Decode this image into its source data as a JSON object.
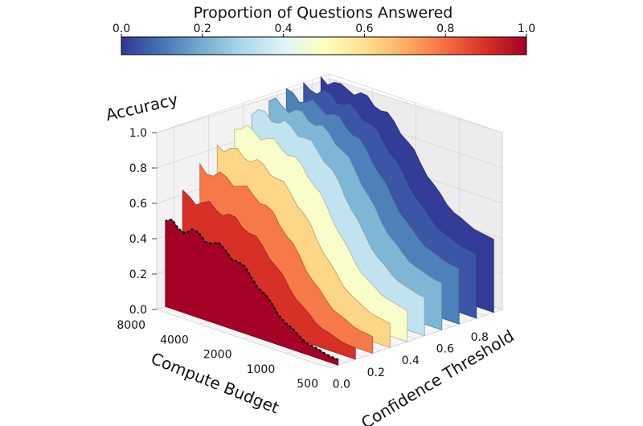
{
  "chart_data": {
    "type": "surface3d",
    "colorbar": {
      "title": "Proportion of Questions Answered",
      "ticks": [
        "0.0",
        "0.2",
        "0.4",
        "0.6",
        "0.8",
        "1.0"
      ],
      "colormap": "RdYlBu_r",
      "range": [
        0,
        1
      ],
      "colors": [
        "#313695",
        "#4575b4",
        "#74add1",
        "#abd9e9",
        "#e0f3f8",
        "#ffffbf",
        "#fee090",
        "#fdae61",
        "#f46d43",
        "#d73027",
        "#a50026"
      ]
    },
    "zlabel": "Accuracy",
    "zticks": [
      "0.0",
      "0.2",
      "0.4",
      "0.6",
      "0.8",
      "1.0"
    ],
    "zlim": [
      0,
      1
    ],
    "xlabel": "Compute Budget",
    "xticks": [
      "8000",
      "4000",
      "2000",
      "1000",
      "500"
    ],
    "xscale": "log",
    "ylabel": "Confidence Threshold",
    "yticks": [
      "0.0",
      "0.2",
      "0.4",
      "0.6",
      "0.8"
    ],
    "ylim": [
      0,
      1
    ],
    "grid": true,
    "ridges": [
      {
        "threshold": 0.0,
        "accuracy_low_budget": 0.02,
        "accuracy_high_budget": 0.48,
        "proportion": 1.0
      },
      {
        "threshold": 0.1,
        "accuracy_low_budget": 0.05,
        "accuracy_high_budget": 0.6,
        "proportion": 0.9
      },
      {
        "threshold": 0.2,
        "accuracy_low_budget": 0.08,
        "accuracy_high_budget": 0.72,
        "proportion": 0.78
      },
      {
        "threshold": 0.3,
        "accuracy_low_budget": 0.12,
        "accuracy_high_budget": 0.82,
        "proportion": 0.62
      },
      {
        "threshold": 0.4,
        "accuracy_low_budget": 0.16,
        "accuracy_high_budget": 0.9,
        "proportion": 0.48
      },
      {
        "threshold": 0.5,
        "accuracy_low_budget": 0.2,
        "accuracy_high_budget": 0.95,
        "proportion": 0.34
      },
      {
        "threshold": 0.6,
        "accuracy_low_budget": 0.25,
        "accuracy_high_budget": 0.97,
        "proportion": 0.22
      },
      {
        "threshold": 0.7,
        "accuracy_low_budget": 0.3,
        "accuracy_high_budget": 0.98,
        "proportion": 0.12
      },
      {
        "threshold": 0.8,
        "accuracy_low_budget": 0.35,
        "accuracy_high_budget": 0.99,
        "proportion": 0.05
      },
      {
        "threshold": 0.9,
        "accuracy_low_budget": 0.4,
        "accuracy_high_budget": 1.0,
        "proportion": 0.01
      }
    ]
  }
}
